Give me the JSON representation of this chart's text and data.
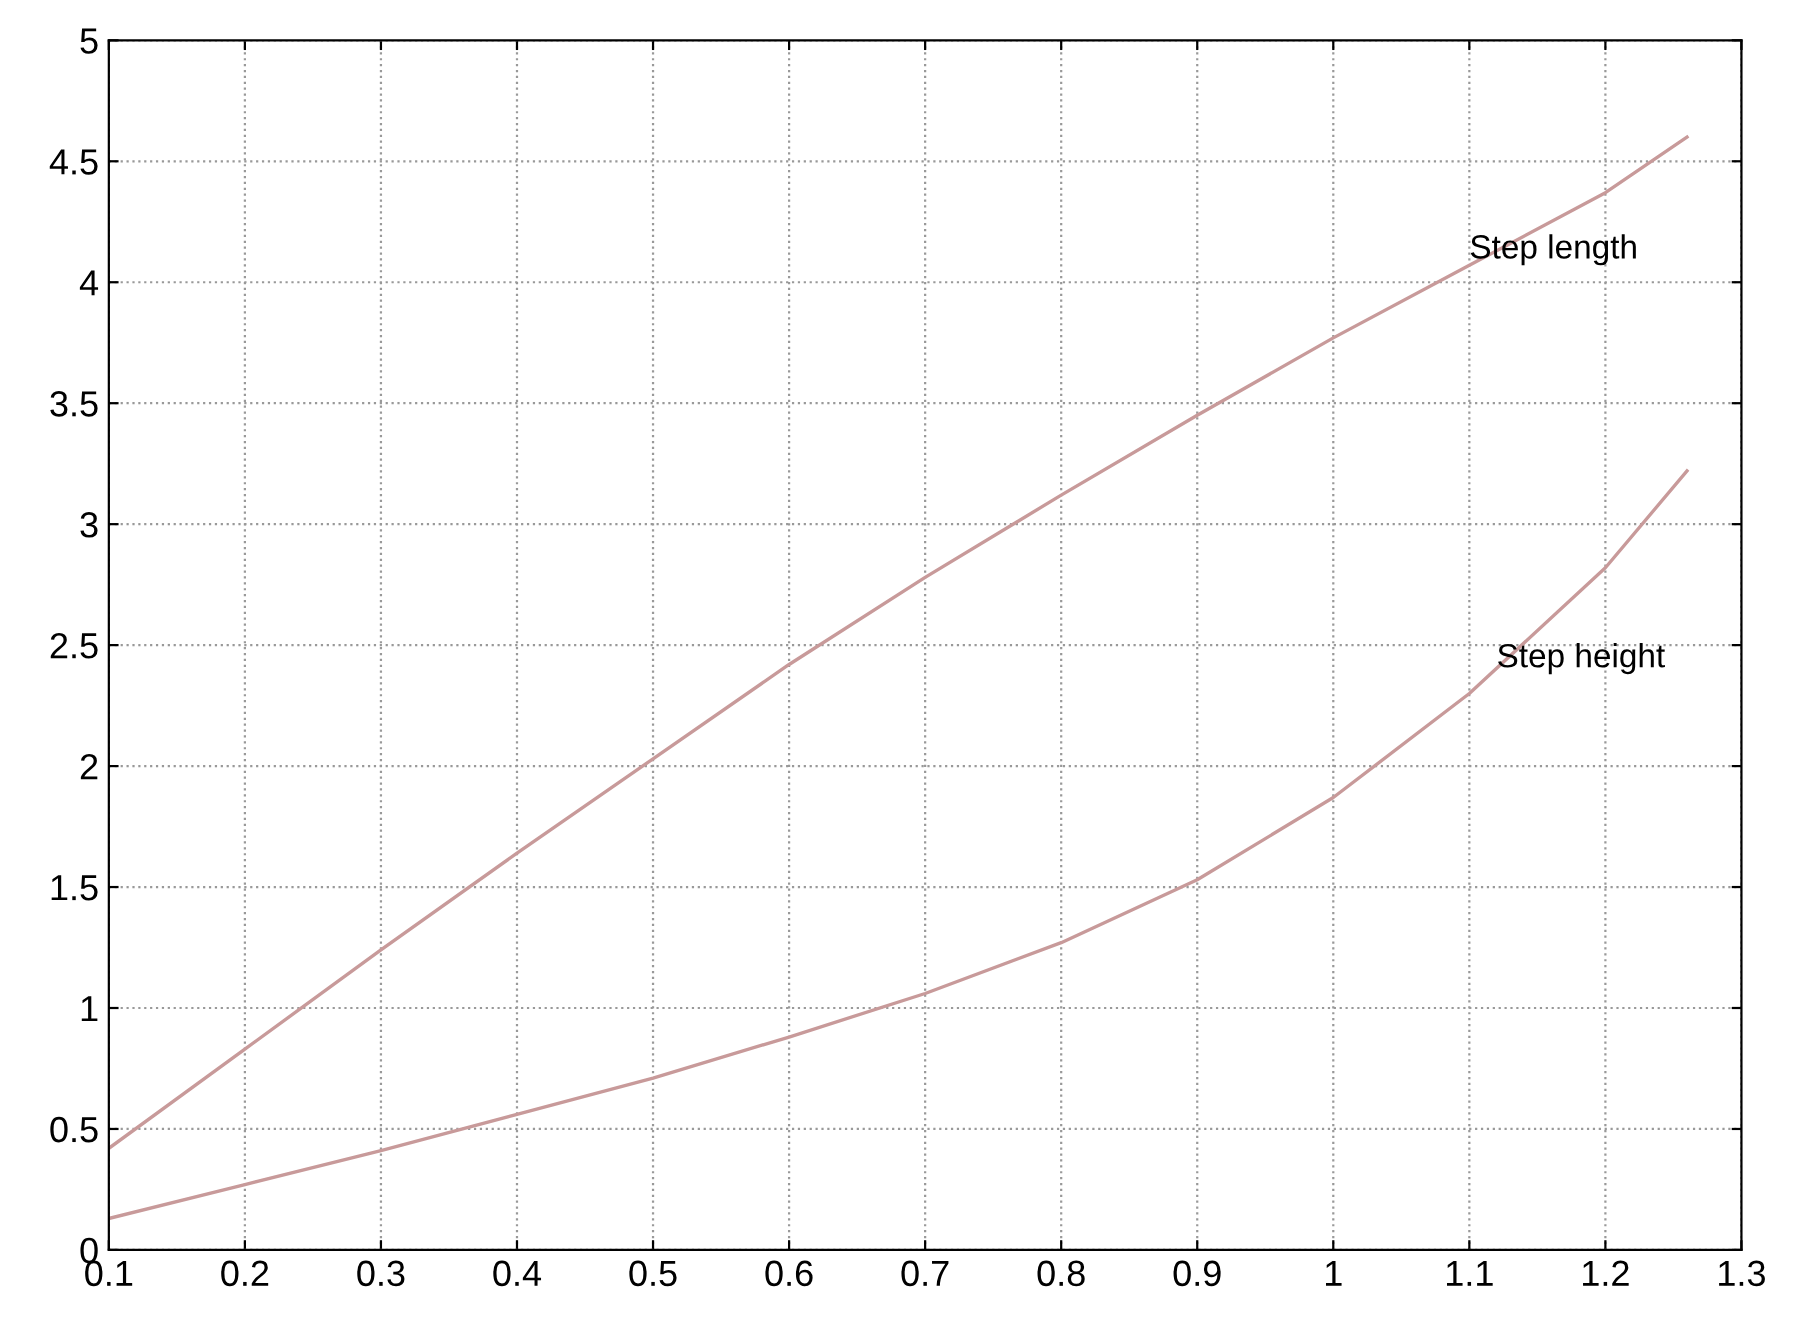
{
  "chart_data": {
    "type": "line",
    "x": [
      0.1,
      0.2,
      0.3,
      0.4,
      0.5,
      0.6,
      0.7,
      0.8,
      0.9,
      1.0,
      1.1,
      1.2,
      1.26
    ],
    "series": [
      {
        "color": "#c89a9a",
        "values": [
          0.42,
          0.83,
          1.24,
          1.64,
          2.03,
          2.42,
          2.78,
          3.12,
          3.45,
          3.77,
          4.07,
          4.37,
          4.6
        ]
      },
      {
        "color": "#c89a9a",
        "values": [
          0.13,
          0.27,
          0.41,
          0.56,
          0.71,
          0.88,
          1.06,
          1.27,
          1.53,
          1.87,
          2.3,
          2.82,
          3.22
        ]
      }
    ],
    "annotations": [
      {
        "text": "Step length",
        "x": 1.1,
        "y": 4.07
      },
      {
        "text": "Step height",
        "x": 1.12,
        "y": 2.38
      }
    ],
    "xlim": [
      0.1,
      1.3
    ],
    "xticks": [
      0.1,
      0.2,
      0.3,
      0.4,
      0.5,
      0.6,
      0.7,
      0.8,
      0.9,
      1,
      1.1,
      1.2,
      1.3
    ],
    "ylim": [
      0,
      5
    ],
    "yticks": [
      0,
      0.5,
      1,
      1.5,
      2,
      2.5,
      3,
      3.5,
      4,
      4.5,
      5
    ],
    "grid": true,
    "line_style": "solid",
    "marker": "none",
    "legend": false
  }
}
